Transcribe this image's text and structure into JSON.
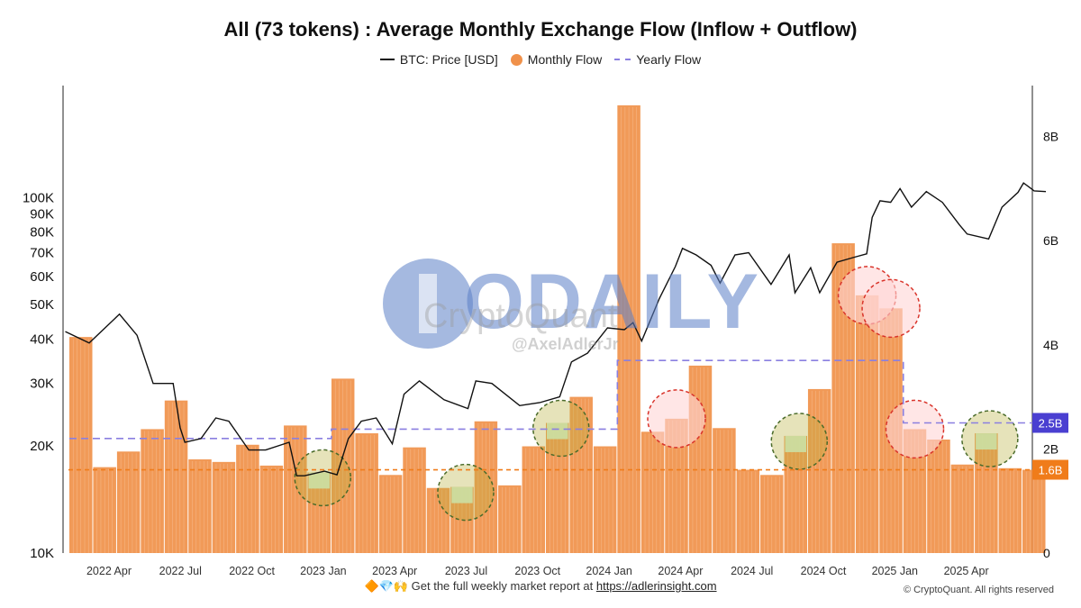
{
  "footer": {
    "emoji": "🔶💎🙌",
    "text": "Get the full weekly market report at",
    "link": "https://adlerinsight.com"
  },
  "copyright": "© CryptoQuant. All rights reserved",
  "watermark": {
    "brand": "ODAILY",
    "source": "CryptoQuant",
    "handle": "@AxelAdlerJr"
  },
  "chart_data": {
    "type": "bar",
    "title": "All (73 tokens) : Average Monthly Exchange Flow (Inflow + Outflow)",
    "legend": [
      "BTC: Price [USD]",
      "Monthly Flow",
      "Yearly Flow"
    ],
    "legend_position": "top-center",
    "grid": false,
    "x_tick_labels": [
      "2022 Apr",
      "2022 Jul",
      "2022 Oct",
      "2023 Jan",
      "2023 Apr",
      "2023 Jul",
      "2023 Oct",
      "2024 Jan",
      "2024 Apr",
      "2024 Jul",
      "2024 Oct",
      "2025 Jan",
      "2025 Apr"
    ],
    "left_axis": {
      "scale": "log",
      "range": [
        10000,
        130000
      ],
      "ticks": [
        {
          "value": 10000,
          "label": "10K"
        },
        {
          "value": 20000,
          "label": "20K"
        },
        {
          "value": 30000,
          "label": "30K"
        },
        {
          "value": 40000,
          "label": "40K"
        },
        {
          "value": 50000,
          "label": "50K"
        },
        {
          "value": 60000,
          "label": "60K"
        },
        {
          "value": 70000,
          "label": "70K"
        },
        {
          "value": 80000,
          "label": "80K"
        },
        {
          "value": 90000,
          "label": "90K"
        },
        {
          "value": 100000,
          "label": "100K"
        }
      ]
    },
    "right_axis": {
      "scale": "linear",
      "range": [
        0,
        9000000000
      ],
      "ticks": [
        {
          "value": 0,
          "label": "0"
        },
        {
          "value": 2000000000,
          "label": "2B"
        },
        {
          "value": 4000000000,
          "label": "4B"
        },
        {
          "value": 6000000000,
          "label": "6B"
        },
        {
          "value": 8000000000,
          "label": "8B"
        }
      ]
    },
    "categories": [
      "2022-02",
      "2022-03",
      "2022-04",
      "2022-05",
      "2022-06",
      "2022-07",
      "2022-08",
      "2022-09",
      "2022-10",
      "2022-11",
      "2022-12",
      "2023-01",
      "2023-02",
      "2023-03",
      "2023-04",
      "2023-05",
      "2023-06",
      "2023-07",
      "2023-08",
      "2023-09",
      "2023-10",
      "2023-11",
      "2023-12",
      "2024-01",
      "2024-02",
      "2024-03",
      "2024-04",
      "2024-05",
      "2024-06",
      "2024-07",
      "2024-08",
      "2024-09",
      "2024-10",
      "2024-11",
      "2024-12",
      "2025-01",
      "2025-02",
      "2025-03",
      "2025-04",
      "2025-05",
      "2025-06"
    ],
    "series": [
      {
        "name": "Monthly Flow",
        "color": "#f0914a",
        "values": [
          4.15,
          1.65,
          1.95,
          2.38,
          2.93,
          1.8,
          1.75,
          2.08,
          1.68,
          2.45,
          1.55,
          3.35,
          2.3,
          1.5,
          2.03,
          1.25,
          1.27,
          2.53,
          1.3,
          2.05,
          2.5,
          3.0,
          2.05,
          8.6,
          2.33,
          2.58,
          3.6,
          2.4,
          1.6,
          1.5,
          2.25,
          3.15,
          5.95,
          4.95,
          4.7,
          2.38,
          2.18,
          1.7,
          2.3,
          1.63,
          1.6
        ]
      },
      {
        "name": "Yearly Flow",
        "color": "#8a7fe0",
        "style": "dashed",
        "values": [
          2.2,
          2.2,
          2.2,
          2.2,
          2.2,
          2.2,
          2.2,
          2.2,
          2.2,
          2.2,
          2.2,
          2.38,
          2.38,
          2.38,
          2.38,
          2.38,
          2.38,
          2.38,
          2.38,
          2.38,
          2.38,
          2.38,
          2.38,
          3.7,
          3.7,
          3.7,
          3.7,
          3.7,
          3.7,
          3.7,
          3.7,
          3.7,
          3.7,
          3.7,
          3.7,
          2.5,
          2.5,
          2.5,
          2.5,
          2.5,
          2.5
        ]
      },
      {
        "name": "BTC: Price [USD]",
        "color": "#111111",
        "axis": "left",
        "x": [
          "2022-01-20",
          "2022-02-20",
          "2022-03-28",
          "2022-04-20",
          "2022-05-10",
          "2022-06-05",
          "2022-06-14",
          "2022-06-20",
          "2022-07-10",
          "2022-07-29",
          "2022-08-15",
          "2022-09-10",
          "2022-10-01",
          "2022-10-31",
          "2022-11-10",
          "2022-11-20",
          "2022-12-15",
          "2022-12-31",
          "2023-01-15",
          "2023-02-01",
          "2023-02-20",
          "2023-03-10",
          "2023-03-25",
          "2023-04-14",
          "2023-05-15",
          "2023-06-15",
          "2023-06-25",
          "2023-07-15",
          "2023-08-20",
          "2023-09-15",
          "2023-10-10",
          "2023-10-25",
          "2023-11-15",
          "2023-12-10",
          "2024-01-01",
          "2024-01-12",
          "2024-01-23",
          "2024-02-15",
          "2024-03-05",
          "2024-03-14",
          "2024-04-01",
          "2024-04-20",
          "2024-05-01",
          "2024-05-20",
          "2024-06-07",
          "2024-07-05",
          "2024-07-28",
          "2024-08-05",
          "2024-08-25",
          "2024-09-06",
          "2024-09-28",
          "2024-10-20",
          "2024-11-05",
          "2024-11-12",
          "2024-11-22",
          "2024-12-05",
          "2024-12-17",
          "2025-01-01",
          "2025-01-20",
          "2025-02-10",
          "2025-03-01",
          "2025-03-11",
          "2025-04-08",
          "2025-04-25",
          "2025-05-15",
          "2025-05-22",
          "2025-06-05",
          "2025-06-20"
        ],
        "values": [
          42000,
          39000,
          47000,
          41000,
          30000,
          30000,
          22500,
          20500,
          21000,
          24000,
          23500,
          19500,
          19500,
          20500,
          16500,
          16500,
          17000,
          16600,
          21000,
          23500,
          24000,
          20300,
          28000,
          30500,
          27000,
          25500,
          30500,
          30000,
          26000,
          26500,
          27500,
          34500,
          36500,
          43000,
          42500,
          44500,
          39500,
          52000,
          64000,
          72000,
          69000,
          64500,
          57500,
          69000,
          70000,
          57000,
          69000,
          54000,
          63500,
          54000,
          65800,
          68000,
          69500,
          88000,
          98000,
          97000,
          106000,
          94000,
          104000,
          97000,
          84000,
          79000,
          76500,
          94000,
          103500,
          110000,
          104500,
          104000
        ]
      }
    ],
    "reference_lines": [
      {
        "name": "Yearly Flow current",
        "value": 2.5,
        "label": "2.5B",
        "color": "#4a3fd1"
      },
      {
        "name": "Monthly Flow current",
        "value": 1.6,
        "label": "1.6B",
        "color": "#f07c1a"
      }
    ],
    "annotations": {
      "highlight_color_high": "#ffd6d6",
      "highlight_color_low": "#d7f7d7",
      "high_flow_months": [
        "2024-03",
        "2024-11",
        "2024-12",
        "2025-01"
      ],
      "low_flow_months": [
        "2022-12",
        "2023-06",
        "2023-10",
        "2024-08",
        "2025-04"
      ]
    }
  }
}
